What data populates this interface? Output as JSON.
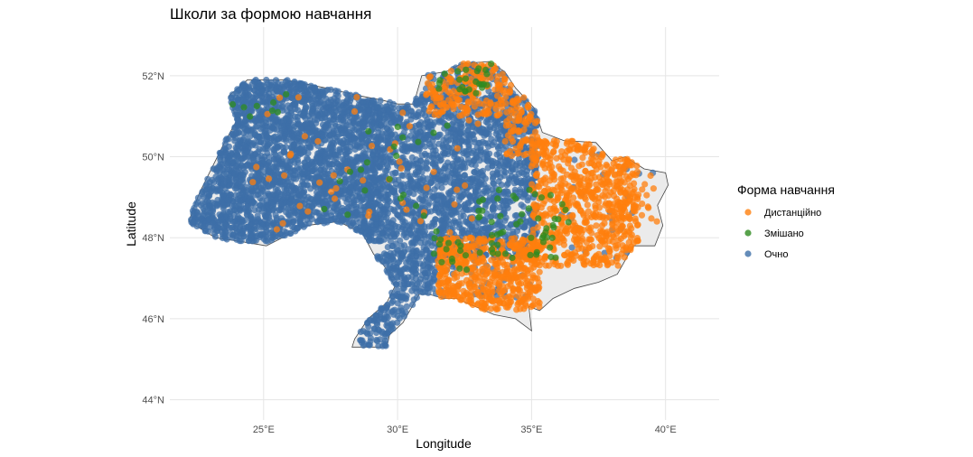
{
  "chart_data": {
    "type": "scatter",
    "title": "Школи за формою навчання",
    "xlabel": "Longitude",
    "ylabel": "Latitude",
    "xlim": [
      21.5,
      42
    ],
    "ylim": [
      43.5,
      53.2
    ],
    "x_ticks": [
      25,
      30,
      35,
      40
    ],
    "x_tick_labels": [
      "25°E",
      "30°E",
      "35°E",
      "40°E"
    ],
    "y_ticks": [
      44,
      46,
      48,
      50,
      52
    ],
    "y_tick_labels": [
      "44°N",
      "46°N",
      "48°N",
      "50°N",
      "52°N"
    ],
    "grid": true,
    "legend": {
      "title": "Форма навчання",
      "position": "right",
      "entries": [
        {
          "name": "Дистанційно",
          "color": "#ff7f0e"
        },
        {
          "name": "Змішано",
          "color": "#2e8b1f"
        },
        {
          "name": "Очно",
          "color": "#3d6fa8"
        }
      ]
    },
    "basemap": {
      "fill": "#ebebeb",
      "stroke": "#444444",
      "outline": [
        [
          22.2,
          48.4
        ],
        [
          22.6,
          49.1
        ],
        [
          23.5,
          50.3
        ],
        [
          24.0,
          50.9
        ],
        [
          23.7,
          51.5
        ],
        [
          24.4,
          51.9
        ],
        [
          25.8,
          51.9
        ],
        [
          27.3,
          51.7
        ],
        [
          28.6,
          51.5
        ],
        [
          29.4,
          51.4
        ],
        [
          30.0,
          51.3
        ],
        [
          30.6,
          51.3
        ],
        [
          30.9,
          52.0
        ],
        [
          31.8,
          52.1
        ],
        [
          32.4,
          52.3
        ],
        [
          33.4,
          52.35
        ],
        [
          34.0,
          52.1
        ],
        [
          34.4,
          51.7
        ],
        [
          35.1,
          51.2
        ],
        [
          35.4,
          50.6
        ],
        [
          36.2,
          50.4
        ],
        [
          37.4,
          50.35
        ],
        [
          38.0,
          49.9
        ],
        [
          38.5,
          50.0
        ],
        [
          39.2,
          49.7
        ],
        [
          40.0,
          49.6
        ],
        [
          40.1,
          49.3
        ],
        [
          39.7,
          48.8
        ],
        [
          39.9,
          48.3
        ],
        [
          39.6,
          47.8
        ],
        [
          38.8,
          47.8
        ],
        [
          38.2,
          47.1
        ],
        [
          37.5,
          46.9
        ],
        [
          36.6,
          46.75
        ],
        [
          35.8,
          46.5
        ],
        [
          35.3,
          46.2
        ],
        [
          34.9,
          46.3
        ],
        [
          35.0,
          45.7
        ],
        [
          34.4,
          46.0
        ],
        [
          33.6,
          46.1
        ],
        [
          32.2,
          46.5
        ],
        [
          31.7,
          46.5
        ],
        [
          31.2,
          46.6
        ],
        [
          30.8,
          46.6
        ],
        [
          30.2,
          45.9
        ],
        [
          29.7,
          45.6
        ],
        [
          29.6,
          45.3
        ],
        [
          28.3,
          45.3
        ],
        [
          28.4,
          45.5
        ],
        [
          28.9,
          46.0
        ],
        [
          29.6,
          46.4
        ],
        [
          29.9,
          46.8
        ],
        [
          29.5,
          47.3
        ],
        [
          29.1,
          47.6
        ],
        [
          28.7,
          48.1
        ],
        [
          27.8,
          48.4
        ],
        [
          26.6,
          48.3
        ],
        [
          25.1,
          47.8
        ],
        [
          24.2,
          47.9
        ],
        [
          23.2,
          48.0
        ],
        [
          22.7,
          48.2
        ]
      ]
    },
    "series": [
      {
        "name": "Очно",
        "color": "#3d6fa8",
        "regions": [
          {
            "lon_range": [
              22.2,
              29.5
            ],
            "lat_range": [
              47.9,
              51.9
            ],
            "count": 2600
          },
          {
            "lon_range": [
              29.5,
              35.2
            ],
            "lat_range": [
              47.5,
              51.5
            ],
            "count": 1700
          },
          {
            "lon_range": [
              30.6,
              34.4
            ],
            "lat_range": [
              51.3,
              52.3
            ],
            "count": 140
          },
          {
            "lon_range": [
              28.6,
              31.5
            ],
            "lat_range": [
              45.3,
              47.6
            ],
            "count": 260
          },
          {
            "lon_range": [
              31.5,
              35.0
            ],
            "lat_range": [
              46.5,
              47.5
            ],
            "count": 40
          },
          {
            "lon_range": [
              35.0,
              40.0
            ],
            "lat_range": [
              47.0,
              50.2
            ],
            "count": 30
          }
        ]
      },
      {
        "name": "Дистанційно",
        "color": "#ff7f0e",
        "regions": [
          {
            "lon_range": [
              35.0,
              39.0
            ],
            "lat_range": [
              47.3,
              50.4
            ],
            "count": 650
          },
          {
            "lon_range": [
              31.5,
              35.3
            ],
            "lat_range": [
              46.2,
              48.0
            ],
            "count": 500
          },
          {
            "lon_range": [
              31.0,
              34.5
            ],
            "lat_range": [
              51.0,
              52.35
            ],
            "count": 180
          },
          {
            "lon_range": [
              34.0,
              35.5
            ],
            "lat_range": [
              50.0,
              51.5
            ],
            "count": 80
          },
          {
            "lon_range": [
              37.5,
              40.0
            ],
            "lat_range": [
              48.3,
              49.7
            ],
            "count": 40
          },
          {
            "lon_range": [
              24.0,
              33.0
            ],
            "lat_range": [
              48.0,
              51.5
            ],
            "count": 50
          }
        ]
      },
      {
        "name": "Змішано",
        "color": "#2e8b1f",
        "regions": [
          {
            "lon_range": [
              33.0,
              36.5
            ],
            "lat_range": [
              47.5,
              49.2
            ],
            "count": 50
          },
          {
            "lon_range": [
              31.0,
              34.0
            ],
            "lat_range": [
              47.2,
              48.2
            ],
            "count": 20
          },
          {
            "lon_range": [
              31.5,
              33.5
            ],
            "lat_range": [
              51.5,
              52.3
            ],
            "count": 25
          },
          {
            "lon_range": [
              23.5,
              26.0
            ],
            "lat_range": [
              50.8,
              51.6
            ],
            "count": 8
          },
          {
            "lon_range": [
              27.0,
              32.0
            ],
            "lat_range": [
              48.5,
              51.0
            ],
            "count": 20
          }
        ]
      }
    ]
  }
}
